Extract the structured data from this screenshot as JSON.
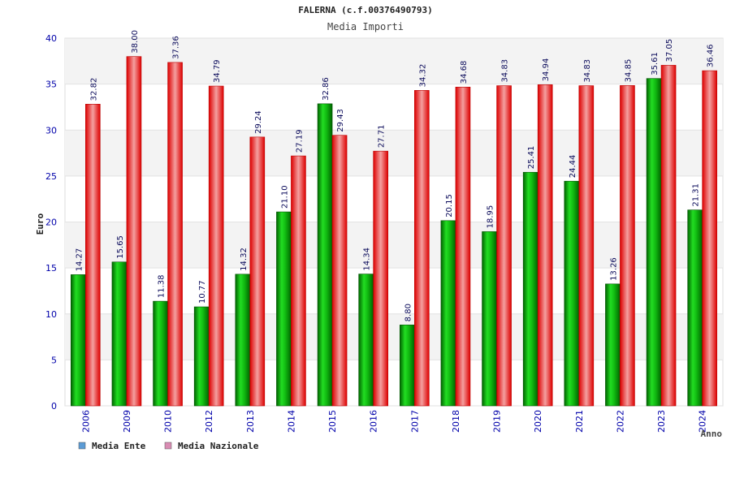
{
  "chart_data": {
    "type": "bar",
    "title": "FALERNA (c.f.00376490793)",
    "subtitle": "Media Importi",
    "xlabel": "Anno",
    "ylabel": "Euro",
    "ylim": [
      0,
      40
    ],
    "yticks": [
      0,
      5,
      10,
      15,
      20,
      25,
      30,
      35,
      40
    ],
    "grid": true,
    "legend_position": "bottom-left",
    "categories": [
      "2006",
      "2009",
      "2010",
      "2012",
      "2013",
      "2014",
      "2015",
      "2016",
      "2017",
      "2018",
      "2019",
      "2020",
      "2021",
      "2022",
      "2023",
      "2024"
    ],
    "series": [
      {
        "name": "Media Ente",
        "legend_color": "#5b9bd5",
        "bar_color": "#00a000",
        "values": [
          14.27,
          15.65,
          11.38,
          10.77,
          14.32,
          21.1,
          32.86,
          14.34,
          8.8,
          20.15,
          18.95,
          25.41,
          24.44,
          13.26,
          35.61,
          21.31
        ]
      },
      {
        "name": "Media Nazionale",
        "legend_color": "#d98cb3",
        "bar_color": "#ee1111",
        "values": [
          32.82,
          38.0,
          37.36,
          34.79,
          29.24,
          27.19,
          29.43,
          27.71,
          34.32,
          34.68,
          34.83,
          34.94,
          34.83,
          34.85,
          37.05,
          36.46
        ]
      }
    ]
  }
}
